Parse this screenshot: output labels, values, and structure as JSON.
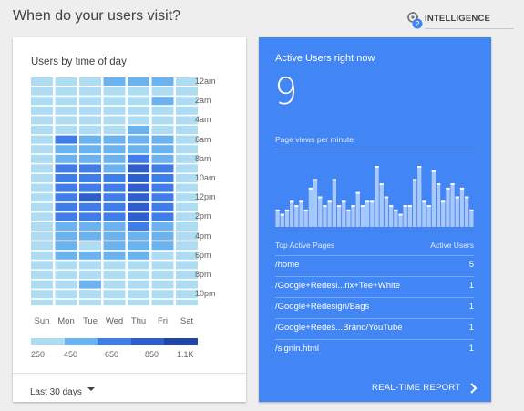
{
  "header": {
    "title": "When do your users visit?",
    "intelligence_label": "INTELLIGENCE",
    "intelligence_badge": "2",
    "intelligence_icon": "intelligence-icon"
  },
  "left_card": {
    "title": "Users by time of day",
    "date_range": "Last 30 days",
    "dropdown_icon": "caret-down-icon"
  },
  "right_card": {
    "title": "Active Users right now",
    "active_count": "9",
    "pv_label": "Page views per minute",
    "table": {
      "col_page": "Top Active Pages",
      "col_users": "Active Users",
      "rows": [
        {
          "page": "/home",
          "users": "5"
        },
        {
          "page": "/Google+Redesi...rix+Tee+White",
          "users": "1"
        },
        {
          "page": "/Google+Redesign/Bags",
          "users": "1"
        },
        {
          "page": "/Google+Redes...Brand/YouTube",
          "users": "1"
        },
        {
          "page": "/signin.html",
          "users": "1"
        }
      ]
    },
    "report_label": "REAL-TIME REPORT",
    "report_icon": "chevron-right-icon"
  },
  "colors": {
    "accent": "#4285f4",
    "heat_scale": [
      "#aedcf2",
      "#6ab2f0",
      "#3f7ee8",
      "#2d5ec9",
      "#2144a8"
    ]
  },
  "heatmap": {
    "days": [
      "Sun",
      "Mon",
      "Tue",
      "Wed",
      "Thu",
      "Fri",
      "Sat"
    ],
    "hour_labels": [
      "12am",
      "2am",
      "4am",
      "6am",
      "8am",
      "10am",
      "12pm",
      "2pm",
      "4pm",
      "6pm",
      "8pm",
      "10pm"
    ],
    "legend_labels": [
      "250",
      "450",
      "650",
      "850",
      "1.1K"
    ],
    "levels": [
      [
        0,
        0,
        0,
        1,
        1,
        1,
        0
      ],
      [
        0,
        0,
        0,
        0,
        0,
        0,
        0
      ],
      [
        0,
        0,
        0,
        0,
        0,
        1,
        0
      ],
      [
        0,
        0,
        0,
        0,
        0,
        0,
        0
      ],
      [
        0,
        0,
        0,
        0,
        0,
        0,
        0
      ],
      [
        0,
        0,
        0,
        0,
        1,
        0,
        0
      ],
      [
        0,
        2,
        1,
        1,
        1,
        1,
        0
      ],
      [
        0,
        1,
        1,
        1,
        1,
        1,
        0
      ],
      [
        0,
        1,
        1,
        1,
        2,
        1,
        0
      ],
      [
        0,
        2,
        2,
        1,
        3,
        2,
        0
      ],
      [
        0,
        2,
        2,
        2,
        3,
        2,
        0
      ],
      [
        0,
        2,
        2,
        2,
        3,
        2,
        0
      ],
      [
        0,
        2,
        3,
        2,
        3,
        2,
        0
      ],
      [
        0,
        2,
        2,
        2,
        3,
        2,
        0
      ],
      [
        0,
        2,
        2,
        2,
        3,
        2,
        0
      ],
      [
        0,
        1,
        1,
        1,
        2,
        1,
        0
      ],
      [
        0,
        1,
        1,
        1,
        1,
        1,
        0
      ],
      [
        0,
        1,
        0,
        1,
        1,
        1,
        0
      ],
      [
        0,
        1,
        1,
        1,
        1,
        0,
        0
      ],
      [
        0,
        0,
        0,
        0,
        0,
        0,
        0
      ],
      [
        0,
        0,
        0,
        0,
        0,
        0,
        0
      ],
      [
        0,
        0,
        1,
        0,
        0,
        0,
        0
      ],
      [
        0,
        0,
        0,
        0,
        0,
        0,
        0
      ],
      [
        0,
        0,
        0,
        0,
        0,
        0,
        0
      ]
    ]
  },
  "page_views": [
    4,
    3,
    4,
    6,
    5,
    6,
    4,
    9,
    11,
    7,
    5,
    6,
    11,
    5,
    6,
    4,
    5,
    8,
    5,
    6,
    6,
    14,
    10,
    7,
    5,
    4,
    3,
    5,
    5,
    11,
    14,
    6,
    5,
    13,
    10,
    6,
    9,
    10,
    7,
    9,
    7,
    4
  ]
}
